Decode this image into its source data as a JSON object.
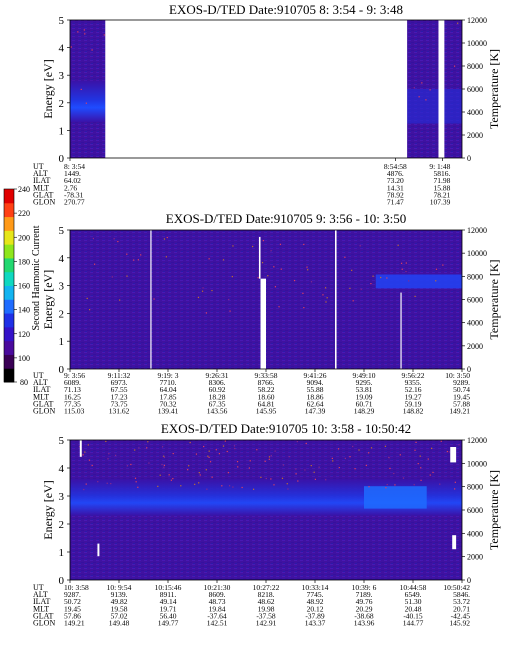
{
  "figure": {
    "colorbar": {
      "label": "Second Harmonic Current",
      "ticks": [
        "80",
        "100",
        "120",
        "140",
        "160",
        "180",
        "200",
        "220",
        "240"
      ],
      "colors": [
        "#000000",
        "#3a0055",
        "#4a0a9c",
        "#3412c8",
        "#1f30e6",
        "#1f6cff",
        "#13b4f0",
        "#0fd8c0",
        "#22d870",
        "#8ee61c",
        "#e6e61a",
        "#ff9a18",
        "#ff4014",
        "#e00000"
      ]
    }
  },
  "chart_data": [
    {
      "type": "heatmap",
      "title": "EXOS-D/TED   Date:910705  8: 3:54 - 9: 3:48",
      "ylabel": "Energy [eV]",
      "ylabel_right": "Temperature [K]",
      "ylim": [
        0,
        5
      ],
      "ylim_right": [
        0,
        12000
      ],
      "yticks": [
        "0",
        "1",
        "2",
        "3",
        "4",
        "5"
      ],
      "yticks_right": [
        "0",
        "2000",
        "4000",
        "6000",
        "8000",
        "10000",
        "12000"
      ],
      "time_range": [
        "8:03:54",
        "9:03:48"
      ],
      "data_gaps": [
        [
          0.09,
          0.86
        ],
        [
          0.94,
          0.955
        ]
      ],
      "row_labels": [
        "UT",
        "ALT",
        "ILAT",
        "MLT",
        "GLAT",
        "GLON"
      ],
      "columns": [
        {
          "UT": "8: 3:54",
          "ALT": "1449.",
          "ILAT": "64.02",
          "MLT": "2.76",
          "GLAT": "-78.31",
          "GLON": "270.77"
        },
        {
          "UT": "8:54:58",
          "ALT": "4876.",
          "ILAT": "73.20",
          "MLT": "14.31",
          "GLAT": "78.92",
          "GLON": "71.47"
        },
        {
          "UT": "9: 1:48",
          "ALT": "5816.",
          "ILAT": "71.98",
          "MLT": "15.88",
          "GLAT": "78.21",
          "GLON": "107.39"
        }
      ]
    },
    {
      "type": "heatmap",
      "title": "EXOS-D/TED   Date:910705  9: 3:56 - 10: 3:50",
      "ylabel": "Energy [eV]",
      "ylabel_right": "Temperature [K]",
      "ylim": [
        0,
        5
      ],
      "ylim_right": [
        0,
        12000
      ],
      "yticks": [
        "0",
        "1",
        "2",
        "3",
        "4",
        "5"
      ],
      "yticks_right": [
        "0",
        "2000",
        "4000",
        "6000",
        "8000",
        "10000",
        "12000"
      ],
      "time_range": [
        "9:03:56",
        "10:03:50"
      ],
      "row_labels": [
        "UT",
        "ALT",
        "ILAT",
        "MLT",
        "GLAT",
        "GLON"
      ],
      "columns": [
        {
          "UT": "9: 3:56",
          "ALT": "6089.",
          "ILAT": "71.13",
          "MLT": "16.25",
          "GLAT": "77.35",
          "GLON": "115.03"
        },
        {
          "UT": "9:11:32",
          "ALT": "6973.",
          "ILAT": "67.55",
          "MLT": "17.23",
          "GLAT": "73.75",
          "GLON": "131.62"
        },
        {
          "UT": "9:19: 3",
          "ALT": "7710.",
          "ILAT": "64.04",
          "MLT": "17.85",
          "GLAT": "70.32",
          "GLON": "139.41"
        },
        {
          "UT": "9:26:31",
          "ALT": "8306.",
          "ILAT": "60.92",
          "MLT": "18.28",
          "GLAT": "67.35",
          "GLON": "143.56"
        },
        {
          "UT": "9:33:58",
          "ALT": "8766.",
          "ILAT": "58.22",
          "MLT": "18.60",
          "GLAT": "64.81",
          "GLON": "145.95"
        },
        {
          "UT": "9:41:26",
          "ALT": "9094.",
          "ILAT": "55.88",
          "MLT": "18.86",
          "GLAT": "62.64",
          "GLON": "147.39"
        },
        {
          "UT": "9:49:10",
          "ALT": "9295.",
          "ILAT": "53.81",
          "MLT": "19.09",
          "GLAT": "60.71",
          "GLON": "148.29"
        },
        {
          "UT": "9:56:22",
          "ALT": "9355.",
          "ILAT": "52.16",
          "MLT": "19.27",
          "GLAT": "59.19",
          "GLON": "148.82"
        },
        {
          "UT": "10: 3:50",
          "ALT": "9289.",
          "ILAT": "50.74",
          "MLT": "19.45",
          "GLAT": "57.88",
          "GLON": "149.21"
        }
      ]
    },
    {
      "type": "heatmap",
      "title": "EXOS-D/TED   Date:910705  10: 3:58 - 10:50:42",
      "ylabel": "Energy [eV]",
      "ylabel_right": "Temperature [K]",
      "ylim": [
        0,
        5
      ],
      "ylim_right": [
        0,
        12000
      ],
      "yticks": [
        "0",
        "1",
        "2",
        "3",
        "4",
        "5"
      ],
      "yticks_right": [
        "0",
        "2000",
        "4000",
        "6000",
        "8000",
        "10000",
        "12000"
      ],
      "time_range": [
        "10:03:58",
        "10:50:42"
      ],
      "row_labels": [
        "UT",
        "ALT",
        "ILAT",
        "MLT",
        "GLAT",
        "GLON"
      ],
      "columns": [
        {
          "UT": "10: 3:58",
          "ALT": "9287.",
          "ILAT": "50.72",
          "MLT": "19.45",
          "GLAT": "57.86",
          "GLON": "149.21"
        },
        {
          "UT": "10: 9:54",
          "ALT": "9139.",
          "ILAT": "49.82",
          "MLT": "19.58",
          "GLAT": "57.02",
          "GLON": "149.48"
        },
        {
          "UT": "10:15:46",
          "ALT": "8911.",
          "ILAT": "49.14",
          "MLT": "19.71",
          "GLAT": "56.40",
          "GLON": "149.77"
        },
        {
          "UT": "10:21:30",
          "ALT": "8609.",
          "ILAT": "48.73",
          "MLT": "19.84",
          "GLAT": "-37.64",
          "GLON": "142.51"
        },
        {
          "UT": "10:27:22",
          "ALT": "8218.",
          "ILAT": "48.62",
          "MLT": "19.98",
          "GLAT": "-37.58",
          "GLON": "142.91"
        },
        {
          "UT": "10:33:14",
          "ALT": "7745.",
          "ILAT": "48.92",
          "MLT": "20.12",
          "GLAT": "-37.89",
          "GLON": "143.37"
        },
        {
          "UT": "10:39: 6",
          "ALT": "7189.",
          "ILAT": "49.76",
          "MLT": "20.29",
          "GLAT": "-38.68",
          "GLON": "143.96"
        },
        {
          "UT": "10:44:58",
          "ALT": "6549.",
          "ILAT": "51.30",
          "MLT": "20.48",
          "GLAT": "-40.15",
          "GLON": "144.77"
        },
        {
          "UT": "10:50:42",
          "ALT": "5846.",
          "ILAT": "53.72",
          "MLT": "20.71",
          "GLAT": "-42.45",
          "GLON": "145.92"
        }
      ]
    }
  ]
}
